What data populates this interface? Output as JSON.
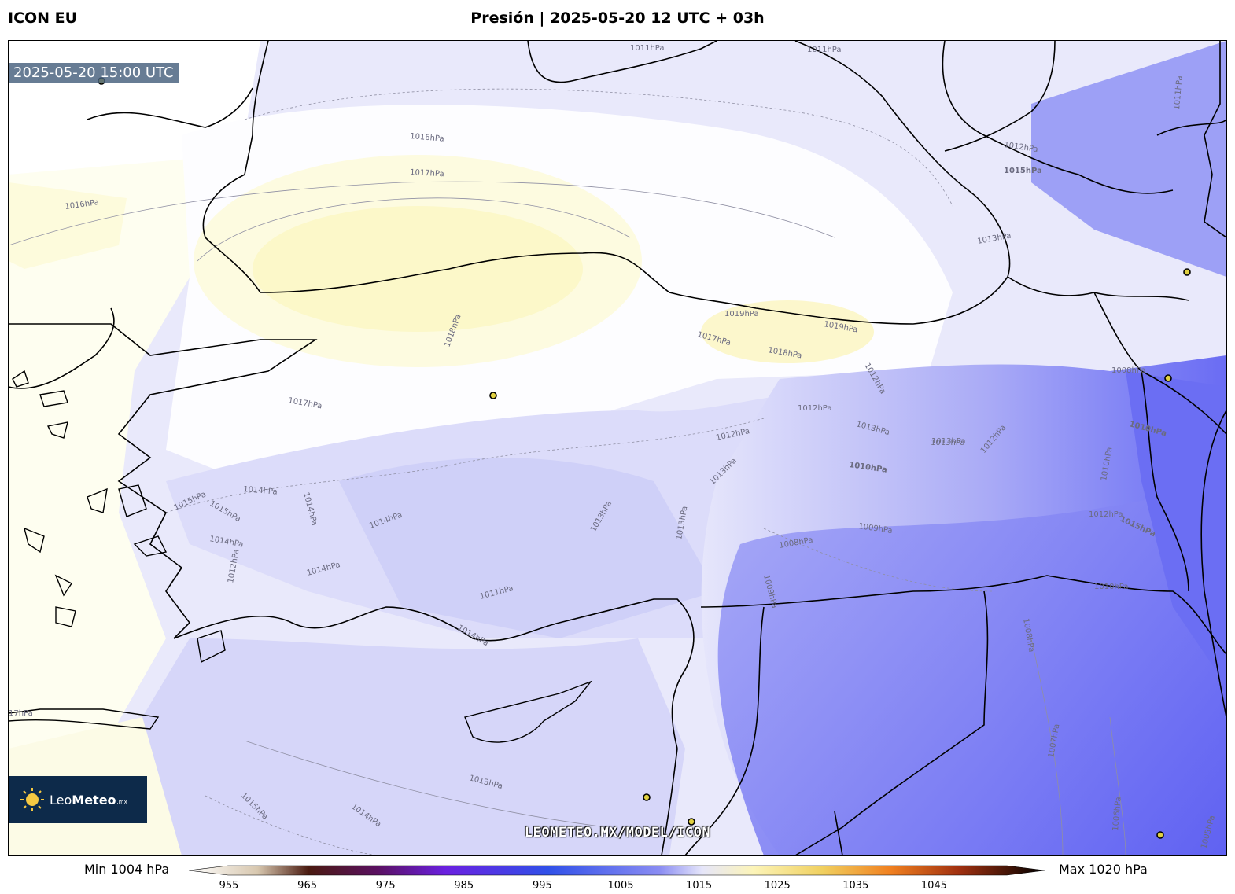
{
  "header": {
    "model": "ICON EU",
    "title": "Presión | 2025-05-20 12 UTC + 03h"
  },
  "map": {
    "valid_time": "2025-05-20 15:00 UTC",
    "watermark": "LEOMETEO.MX/MODEL/ICON",
    "logo": {
      "brand_light": "Leo",
      "brand_bold": "Meteo",
      "suffix": ".mx"
    },
    "isobar_labels": [
      "1011hPa",
      "1011hPa",
      "1016hPa",
      "1017hPa",
      "1016hPa",
      "1018hPa",
      "1017hPa",
      "1019hPa",
      "1019hPa",
      "1017hPa",
      "1018hPa",
      "1012hPa",
      "1012hPa",
      "1013hPa",
      "1012hPa",
      "1013hPa",
      "1015hPa",
      "1012hPa",
      "1013hPa",
      "1014hPa",
      "1014hPa",
      "1015hPa",
      "1014hPa",
      "1014hPa",
      "1014hPa",
      "1012hPa",
      "1011hPa",
      "1014hPa",
      "1013hPa",
      "1013hPa",
      "1013hPa",
      "1014hPa",
      "1015hPa",
      "1010hPa",
      "1009hPa",
      "1008hPa",
      "1009hPa",
      "1008hPa",
      "1007hPa",
      "1006hPa",
      "1005hPa",
      "1013hPa",
      "1010hPa",
      "1010hPa",
      "1010hPa",
      "1012hPa",
      "1015hPa",
      "1008hPa",
      "17hPa",
      "1012hPa",
      "1013hPa",
      "1011hPa",
      "1015hPa"
    ],
    "cities": [
      "city-1",
      "city-2",
      "city-3",
      "city-4",
      "city-5",
      "city-6",
      "city-7"
    ],
    "colors": {
      "frame": "#000000",
      "border": "#000000",
      "high": "#fdf8cc",
      "low": "#5a5cf2"
    }
  },
  "colorbar": {
    "min_label": "Min 1004 hPa",
    "max_label": "Max 1020 hPa",
    "ticks": [
      "955",
      "965",
      "975",
      "985",
      "995",
      "1005",
      "1015",
      "1025",
      "1035",
      "1045"
    ]
  }
}
